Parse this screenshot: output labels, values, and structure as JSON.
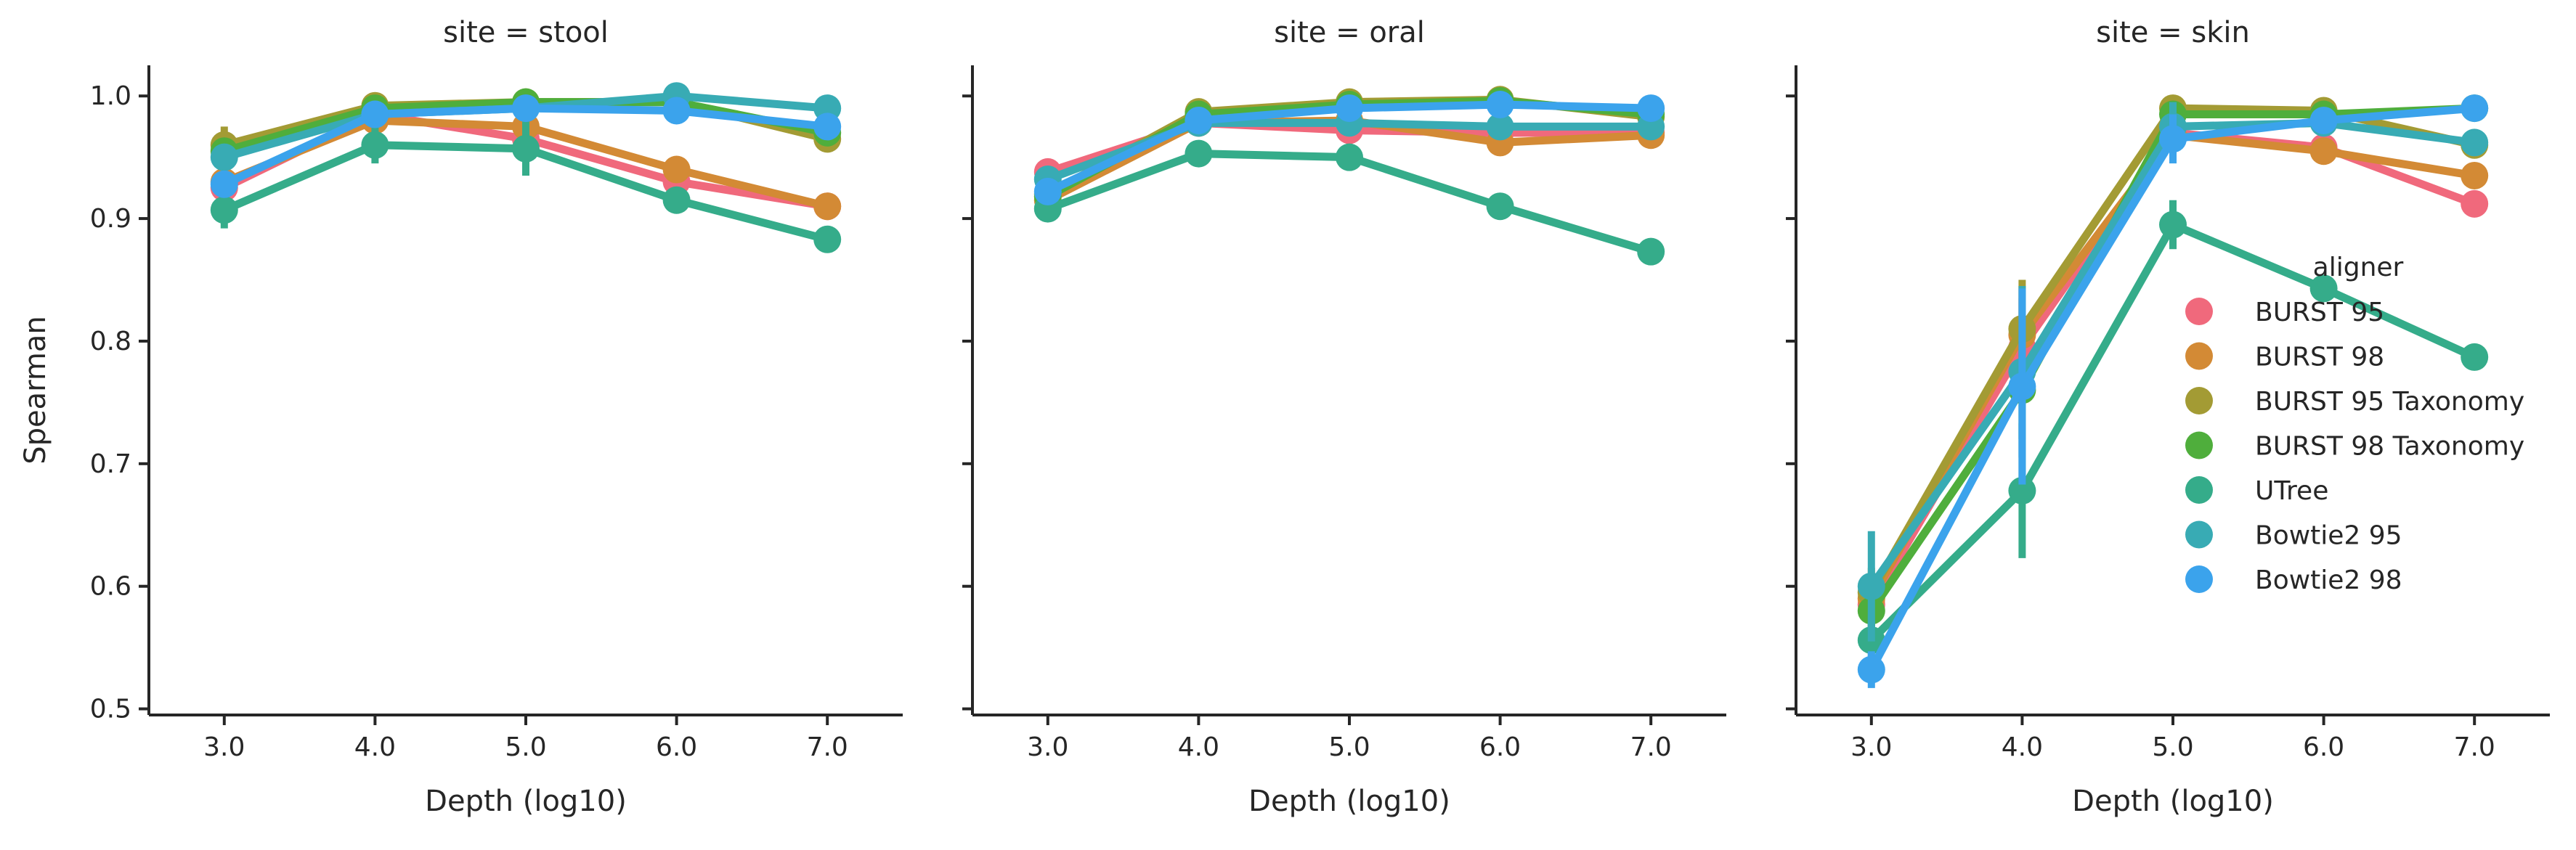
{
  "chart_data": {
    "type": "line",
    "subtype": "point-plot with error bars, faceted",
    "ylabel": "Spearman",
    "xlabel": "Depth (log10)",
    "x": [
      "3.0",
      "4.0",
      "5.0",
      "6.0",
      "7.0"
    ],
    "ylim": [
      0.495,
      1.025
    ],
    "yticks": [
      "0.5",
      "0.6",
      "0.7",
      "0.8",
      "0.9",
      "1.0"
    ],
    "grid": false,
    "legend": {
      "title": "aligner",
      "placement": "right, inside third panel",
      "entries": [
        {
          "name": "BURST 95",
          "color": "#f0697c"
        },
        {
          "name": "BURST 98",
          "color": "#d38a35"
        },
        {
          "name": "BURST 95 Taxonomy",
          "color": "#a39b34"
        },
        {
          "name": "BURST 98 Taxonomy",
          "color": "#4fae3c"
        },
        {
          "name": "UTree",
          "color": "#35ac8a"
        },
        {
          "name": "Bowtie2 95",
          "color": "#38abb4"
        },
        {
          "name": "Bowtie2 98",
          "color": "#3ba3ec"
        }
      ]
    },
    "panels": [
      {
        "title": "site = stool",
        "series": [
          {
            "name": "BURST 95",
            "values": [
              0.925,
              0.985,
              0.965,
              0.93,
              0.91
            ],
            "err": [
              0.008,
              0.004,
              0.006,
              0.005,
              0.004
            ]
          },
          {
            "name": "BURST 98",
            "values": [
              0.93,
              0.98,
              0.975,
              0.94,
              0.91
            ],
            "err": [
              0.008,
              0.004,
              0.006,
              0.005,
              0.004
            ]
          },
          {
            "name": "BURST 95 Taxonomy",
            "values": [
              0.96,
              0.992,
              0.995,
              0.995,
              0.965
            ],
            "err": [
              0.015,
              0.004,
              0.004,
              0.003,
              0.004
            ]
          },
          {
            "name": "BURST 98 Taxonomy",
            "values": [
              0.955,
              0.99,
              0.995,
              0.995,
              0.97
            ],
            "err": [
              0.008,
              0.004,
              0.004,
              0.003,
              0.004
            ]
          },
          {
            "name": "UTree",
            "values": [
              0.907,
              0.96,
              0.957,
              0.915,
              0.883
            ],
            "err": [
              0.015,
              0.015,
              0.022,
              0.005,
              0.004
            ]
          },
          {
            "name": "Bowtie2 95",
            "values": [
              0.95,
              0.985,
              0.99,
              1.0,
              0.99
            ],
            "err": [
              0.008,
              0.004,
              0.004,
              0.003,
              0.004
            ]
          },
          {
            "name": "Bowtie2 98",
            "values": [
              0.928,
              0.985,
              0.99,
              0.988,
              0.975
            ],
            "err": [
              0.008,
              0.004,
              0.004,
              0.003,
              0.004
            ]
          }
        ]
      },
      {
        "title": "site = oral",
        "series": [
          {
            "name": "BURST 95",
            "values": [
              0.938,
              0.978,
              0.972,
              0.97,
              0.97
            ],
            "err": [
              0.005,
              0.003,
              0.003,
              0.003,
              0.003
            ]
          },
          {
            "name": "BURST 98",
            "values": [
              0.915,
              0.978,
              0.98,
              0.962,
              0.968
            ],
            "err": [
              0.005,
              0.003,
              0.003,
              0.003,
              0.003
            ]
          },
          {
            "name": "BURST 95 Taxonomy",
            "values": [
              0.92,
              0.987,
              0.995,
              0.997,
              0.983
            ],
            "err": [
              0.005,
              0.003,
              0.003,
              0.003,
              0.003
            ]
          },
          {
            "name": "BURST 98 Taxonomy",
            "values": [
              0.918,
              0.985,
              0.993,
              0.996,
              0.985
            ],
            "err": [
              0.005,
              0.003,
              0.003,
              0.003,
              0.003
            ]
          },
          {
            "name": "UTree",
            "values": [
              0.908,
              0.953,
              0.95,
              0.91,
              0.873
            ],
            "err": [
              0.005,
              0.003,
              0.003,
              0.003,
              0.003
            ]
          },
          {
            "name": "Bowtie2 95",
            "values": [
              0.932,
              0.978,
              0.978,
              0.975,
              0.975
            ],
            "err": [
              0.005,
              0.003,
              0.003,
              0.003,
              0.003
            ]
          },
          {
            "name": "Bowtie2 98",
            "values": [
              0.922,
              0.98,
              0.99,
              0.993,
              0.99
            ],
            "err": [
              0.005,
              0.003,
              0.003,
              0.003,
              0.003
            ]
          }
        ]
      },
      {
        "title": "site = skin",
        "series": [
          {
            "name": "BURST 95",
            "values": [
              0.585,
              0.795,
              0.97,
              0.958,
              0.912
            ],
            "err": [
              0.02,
              0.04,
              0.01,
              0.008,
              0.006
            ]
          },
          {
            "name": "BURST 98",
            "values": [
              0.59,
              0.805,
              0.968,
              0.955,
              0.935
            ],
            "err": [
              0.02,
              0.04,
              0.01,
              0.008,
              0.006
            ]
          },
          {
            "name": "BURST 95 Taxonomy",
            "values": [
              0.595,
              0.81,
              0.99,
              0.988,
              0.96
            ],
            "err": [
              0.02,
              0.04,
              0.005,
              0.005,
              0.006
            ]
          },
          {
            "name": "BURST 98 Taxonomy",
            "values": [
              0.58,
              0.76,
              0.985,
              0.985,
              0.99
            ],
            "err": [
              0.02,
              0.04,
              0.005,
              0.005,
              0.004
            ]
          },
          {
            "name": "UTree",
            "values": [
              0.556,
              0.678,
              0.895,
              0.843,
              0.787
            ],
            "err": [
              0.02,
              0.055,
              0.02,
              0.008,
              0.006
            ]
          },
          {
            "name": "Bowtie2 95",
            "values": [
              0.6,
              0.775,
              0.975,
              0.978,
              0.962
            ],
            "err": [
              0.045,
              0.07,
              0.02,
              0.008,
              0.006
            ]
          },
          {
            "name": "Bowtie2 98",
            "values": [
              0.532,
              0.763,
              0.965,
              0.98,
              0.99
            ],
            "err": [
              0.015,
              0.08,
              0.02,
              0.008,
              0.004
            ]
          }
        ]
      }
    ]
  }
}
